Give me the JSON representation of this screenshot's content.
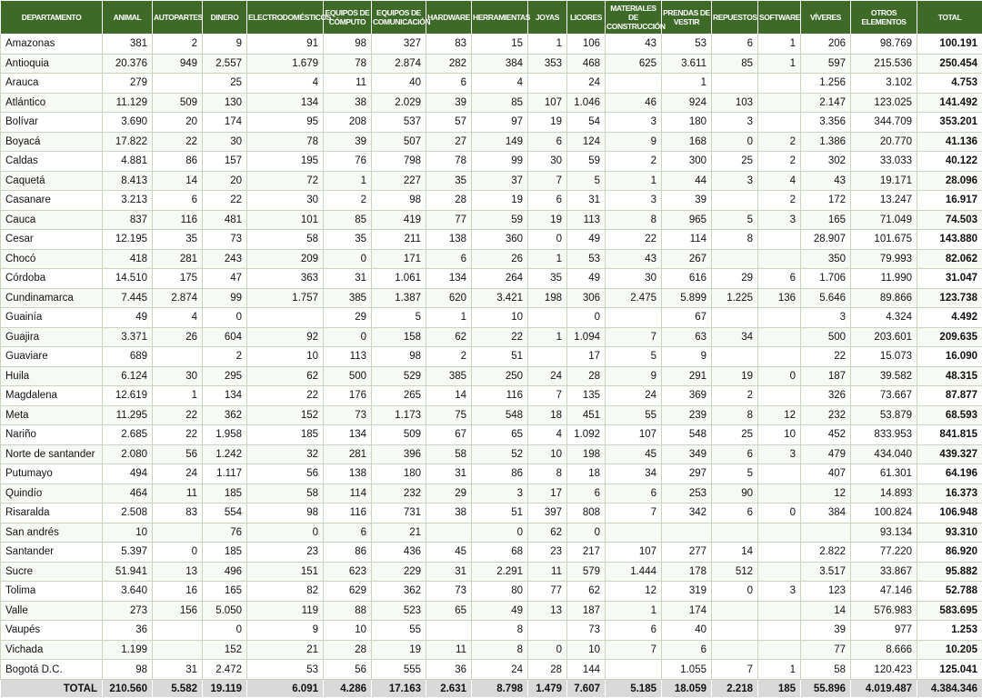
{
  "table": {
    "header": [
      "DEPARTAMENTO",
      "ANIMAL",
      "AUTOPARTES",
      "DINERO",
      "ELECTRODOMÉSTICOS",
      "EQUIPOS DE CÓMPUTO",
      "EQUIPOS DE COMUNICACIÓN",
      "HARDWARE",
      "HERRAMIENTAS",
      "JOYAS",
      "LICORES",
      "MATERIALES DE CONSTRUCCIÓN",
      "PRENDAS DE VESTIR",
      "REPUESTOS",
      "SOFTWARE",
      "VÍVERES",
      "OTROS ELEMENTOS",
      "TOTAL"
    ],
    "rows": [
      [
        "Amazonas",
        "381",
        "2",
        "9",
        "91",
        "98",
        "327",
        "83",
        "15",
        "1",
        "106",
        "43",
        "53",
        "6",
        "1",
        "206",
        "98.769",
        "100.191"
      ],
      [
        "Antioquia",
        "20.376",
        "949",
        "2.557",
        "1.679",
        "78",
        "2.874",
        "282",
        "384",
        "353",
        "468",
        "625",
        "3.611",
        "85",
        "1",
        "597",
        "215.536",
        "250.454"
      ],
      [
        "Arauca",
        "279",
        null,
        "25",
        "4",
        "11",
        "40",
        "6",
        "4",
        null,
        "24",
        null,
        "1",
        null,
        null,
        "1.256",
        "3.102",
        "4.753"
      ],
      [
        "Atlántico",
        "11.129",
        "509",
        "130",
        "134",
        "38",
        "2.029",
        "39",
        "85",
        "107",
        "1.046",
        "46",
        "924",
        "103",
        null,
        "2.147",
        "123.025",
        "141.492"
      ],
      [
        "Bolívar",
        "3.690",
        "20",
        "174",
        "95",
        "208",
        "537",
        "57",
        "97",
        "19",
        "54",
        "3",
        "180",
        "3",
        null,
        "3.356",
        "344.709",
        "353.201"
      ],
      [
        "Boyacá",
        "17.822",
        "22",
        "30",
        "78",
        "39",
        "507",
        "27",
        "149",
        "6",
        "124",
        "9",
        "168",
        "0",
        "2",
        "1.386",
        "20.770",
        "41.136"
      ],
      [
        "Caldas",
        "4.881",
        "86",
        "157",
        "195",
        "76",
        "798",
        "78",
        "99",
        "30",
        "59",
        "2",
        "300",
        "25",
        "2",
        "302",
        "33.033",
        "40.122"
      ],
      [
        "Caquetá",
        "8.413",
        "14",
        "20",
        "72",
        "1",
        "227",
        "35",
        "37",
        "7",
        "5",
        "1",
        "44",
        "3",
        "4",
        "43",
        "19.171",
        "28.096"
      ],
      [
        "Casanare",
        "3.213",
        "6",
        "22",
        "30",
        "2",
        "98",
        "28",
        "19",
        "6",
        "31",
        "3",
        "39",
        null,
        "2",
        "172",
        "13.247",
        "16.917"
      ],
      [
        "Cauca",
        "837",
        "116",
        "481",
        "101",
        "85",
        "419",
        "77",
        "59",
        "19",
        "113",
        "8",
        "965",
        "5",
        "3",
        "165",
        "71.049",
        "74.503"
      ],
      [
        "Cesar",
        "12.195",
        "35",
        "73",
        "58",
        "35",
        "211",
        "138",
        "360",
        "0",
        "49",
        "22",
        "114",
        "8",
        null,
        "28.907",
        "101.675",
        "143.880"
      ],
      [
        "Chocó",
        "418",
        "281",
        "243",
        "209",
        "0",
        "171",
        "6",
        "26",
        "1",
        "53",
        "43",
        "267",
        null,
        null,
        "350",
        "79.993",
        "82.062"
      ],
      [
        "Córdoba",
        "14.510",
        "175",
        "47",
        "363",
        "31",
        "1.061",
        "134",
        "264",
        "35",
        "49",
        "30",
        "616",
        "29",
        "6",
        "1.706",
        "11.990",
        "31.047"
      ],
      [
        "Cundinamarca",
        "7.445",
        "2.874",
        "99",
        "1.757",
        "385",
        "1.387",
        "620",
        "3.421",
        "198",
        "306",
        "2.475",
        "5.899",
        "1.225",
        "136",
        "5.646",
        "89.866",
        "123.738"
      ],
      [
        "Guainía",
        "49",
        "4",
        "0",
        null,
        "29",
        "5",
        "1",
        "10",
        null,
        "0",
        null,
        "67",
        null,
        null,
        "3",
        "4.324",
        "4.492"
      ],
      [
        "Guajira",
        "3.371",
        "26",
        "604",
        "92",
        "0",
        "158",
        "62",
        "22",
        "1",
        "1.094",
        "7",
        "63",
        "34",
        null,
        "500",
        "203.601",
        "209.635"
      ],
      [
        "Guaviare",
        "689",
        null,
        "2",
        "10",
        "113",
        "98",
        "2",
        "51",
        null,
        "17",
        "5",
        "9",
        null,
        null,
        "22",
        "15.073",
        "16.090"
      ],
      [
        "Huila",
        "6.124",
        "30",
        "295",
        "62",
        "500",
        "529",
        "385",
        "250",
        "24",
        "28",
        "9",
        "291",
        "19",
        "0",
        "187",
        "39.582",
        "48.315"
      ],
      [
        "Magdalena",
        "12.619",
        "1",
        "134",
        "22",
        "176",
        "265",
        "14",
        "116",
        "7",
        "135",
        "24",
        "369",
        "2",
        null,
        "326",
        "73.667",
        "87.877"
      ],
      [
        "Meta",
        "11.295",
        "22",
        "362",
        "152",
        "73",
        "1.173",
        "75",
        "548",
        "18",
        "451",
        "55",
        "239",
        "8",
        "12",
        "232",
        "53.879",
        "68.593"
      ],
      [
        "Nariño",
        "2.685",
        "22",
        "1.958",
        "185",
        "134",
        "509",
        "67",
        "65",
        "4",
        "1.092",
        "107",
        "548",
        "25",
        "10",
        "452",
        "833.953",
        "841.815"
      ],
      [
        "Norte de santander",
        "2.080",
        "56",
        "1.242",
        "32",
        "281",
        "396",
        "58",
        "52",
        "10",
        "198",
        "45",
        "349",
        "6",
        "3",
        "479",
        "434.040",
        "439.327"
      ],
      [
        "Putumayo",
        "494",
        "24",
        "1.117",
        "56",
        "138",
        "180",
        "31",
        "86",
        "8",
        "18",
        "34",
        "297",
        "5",
        null,
        "407",
        "61.301",
        "64.196"
      ],
      [
        "Quindío",
        "464",
        "11",
        "185",
        "58",
        "114",
        "232",
        "29",
        "3",
        "17",
        "6",
        "6",
        "253",
        "90",
        null,
        "12",
        "14.893",
        "16.373"
      ],
      [
        "Risaralda",
        "2.508",
        "83",
        "554",
        "98",
        "116",
        "731",
        "38",
        "51",
        "397",
        "808",
        "7",
        "342",
        "6",
        "0",
        "384",
        "100.824",
        "106.948"
      ],
      [
        "San andrés",
        "10",
        null,
        "76",
        "0",
        "6",
        "21",
        null,
        "0",
        "62",
        "0",
        null,
        null,
        null,
        null,
        null,
        "93.134",
        "93.310"
      ],
      [
        "Santander",
        "5.397",
        "0",
        "185",
        "23",
        "86",
        "436",
        "45",
        "68",
        "23",
        "217",
        "107",
        "277",
        "14",
        null,
        "2.822",
        "77.220",
        "86.920"
      ],
      [
        "Sucre",
        "51.941",
        "13",
        "496",
        "151",
        "623",
        "229",
        "31",
        "2.291",
        "11",
        "579",
        "1.444",
        "178",
        "512",
        null,
        "3.517",
        "33.867",
        "95.882"
      ],
      [
        "Tolima",
        "3.640",
        "16",
        "165",
        "82",
        "629",
        "362",
        "73",
        "80",
        "77",
        "62",
        "12",
        "319",
        "0",
        "3",
        "123",
        "47.146",
        "52.788"
      ],
      [
        "Valle",
        "273",
        "156",
        "5.050",
        "119",
        "88",
        "523",
        "65",
        "49",
        "13",
        "187",
        "1",
        "174",
        null,
        null,
        "14",
        "576.983",
        "583.695"
      ],
      [
        "Vaupés",
        "36",
        null,
        "0",
        "9",
        "10",
        "55",
        null,
        "8",
        null,
        "73",
        "6",
        "40",
        null,
        null,
        "39",
        "977",
        "1.253"
      ],
      [
        "Vichada",
        "1.199",
        null,
        "152",
        "21",
        "28",
        "19",
        "11",
        "8",
        "0",
        "10",
        "7",
        "6",
        null,
        null,
        "77",
        "8.666",
        "10.205"
      ],
      [
        "Bogotá D.C.",
        "98",
        "31",
        "2.472",
        "53",
        "56",
        "555",
        "36",
        "24",
        "28",
        "144",
        null,
        "1.055",
        "7",
        "1",
        "58",
        "120.423",
        "125.041"
      ]
    ],
    "total": [
      "TOTAL",
      "210.560",
      "5.582",
      "19.119",
      "6.091",
      "4.286",
      "17.163",
      "2.631",
      "8.798",
      "1.479",
      "7.607",
      "5.185",
      "18.059",
      "2.218",
      "185",
      "55.896",
      "4.019.487",
      "4.384.346"
    ]
  }
}
